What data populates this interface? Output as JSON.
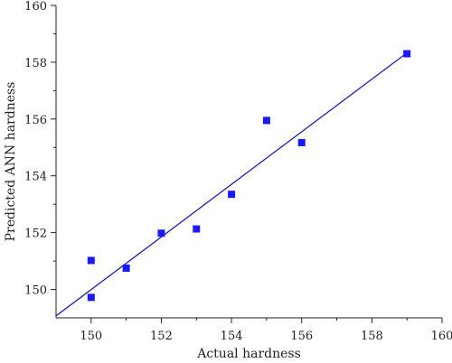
{
  "chart_data": {
    "type": "scatter",
    "xlabel": "Actual hardness",
    "ylabel": "Predicted ANN hardness",
    "xlim": [
      149,
      160
    ],
    "ylim": [
      149,
      160
    ],
    "xticks": [
      150,
      152,
      154,
      156,
      158,
      160
    ],
    "yticks": [
      150,
      152,
      154,
      156,
      158,
      160
    ],
    "grid": false,
    "marker_color": "#1a1aff",
    "line_color": "#1f1fbf",
    "points": [
      {
        "x": 150,
        "y": 149.72
      },
      {
        "x": 150,
        "y": 151.02
      },
      {
        "x": 151,
        "y": 150.75
      },
      {
        "x": 152,
        "y": 151.98
      },
      {
        "x": 153,
        "y": 152.13
      },
      {
        "x": 154,
        "y": 153.35
      },
      {
        "x": 155,
        "y": 155.95
      },
      {
        "x": 156,
        "y": 155.17
      },
      {
        "x": 159,
        "y": 158.3
      }
    ],
    "fit_line": {
      "x": [
        149,
        159
      ],
      "y": [
        149.07,
        158.33
      ]
    }
  }
}
